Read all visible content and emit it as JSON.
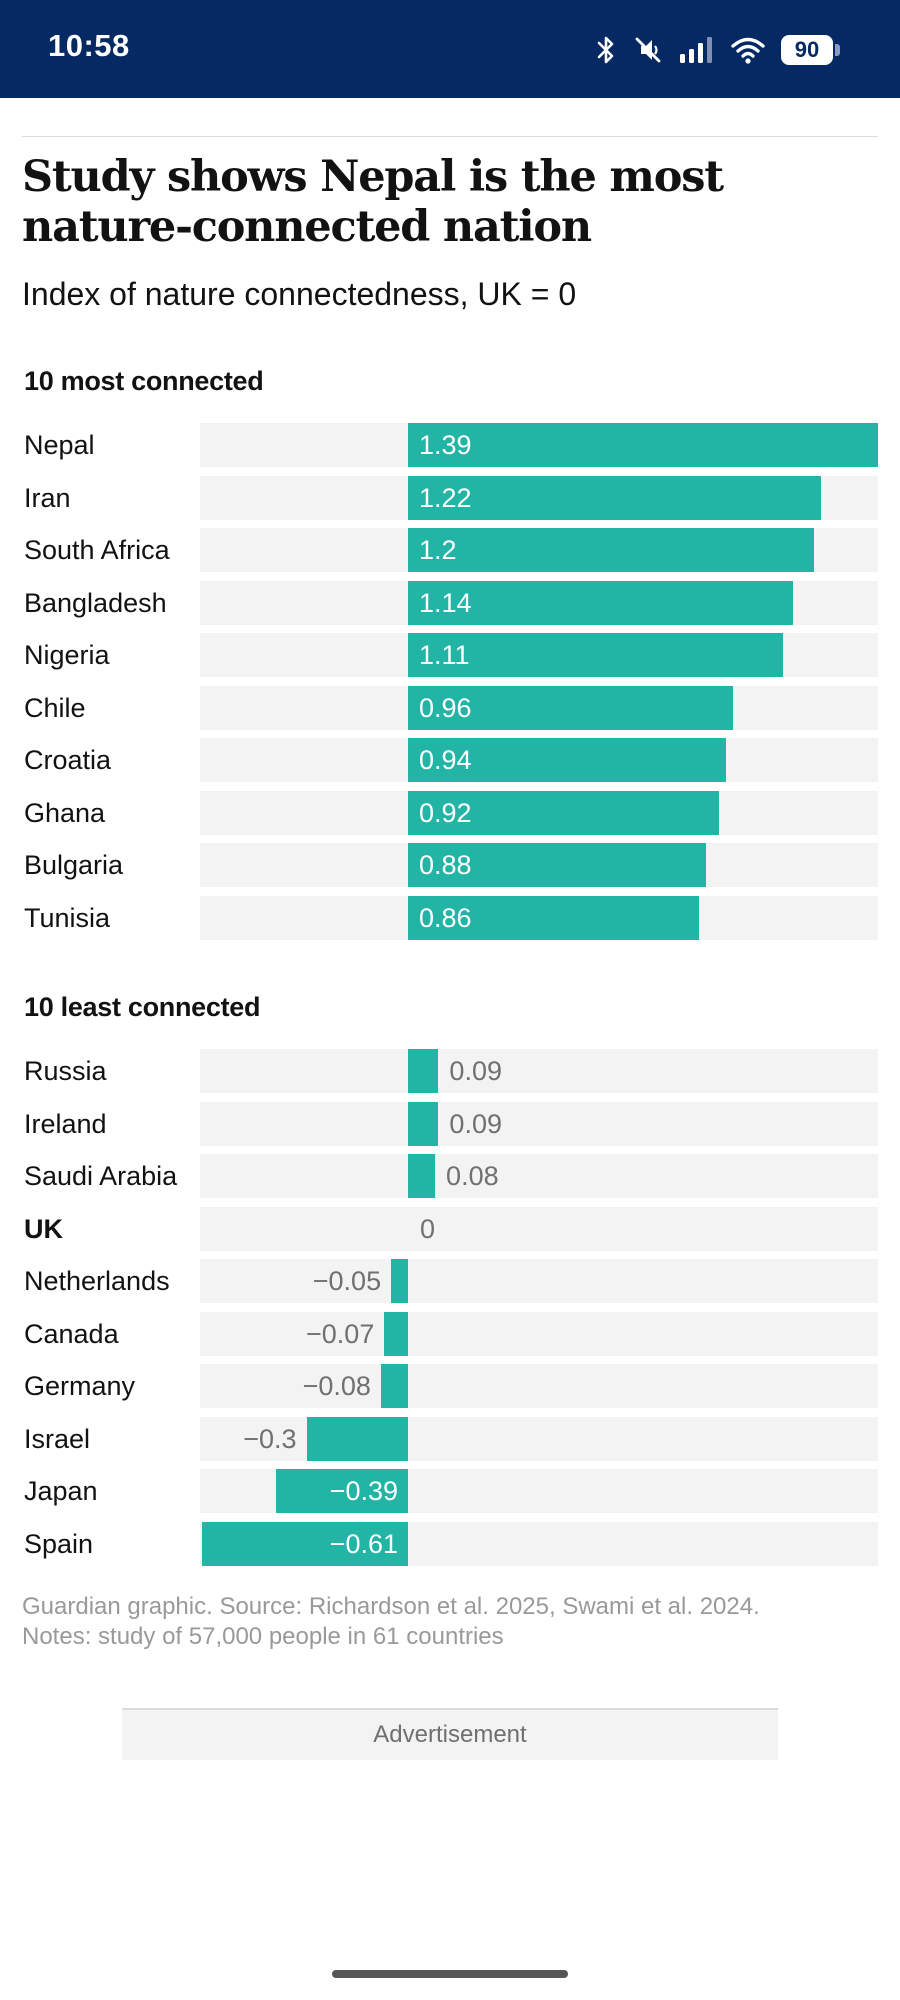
{
  "status_bar": {
    "time": "10:58",
    "battery": "90"
  },
  "article": {
    "headline": "Study shows Nepal is the most nature-connected nation",
    "subtitle": "Index of nature connectedness, UK = 0",
    "source_line1": "Guardian graphic. Source: Richardson et al. 2025, Swami et al. 2024.",
    "source_line2": "Notes: study of 57,000 people in 61 countries"
  },
  "ad": {
    "label": "Advertisement"
  },
  "colors": {
    "bar": "#22b5a6",
    "track": "#f3f3f3",
    "header": "#052962"
  },
  "chart_data": {
    "type": "bar",
    "orientation": "horizontal",
    "title": "Study shows Nepal is the most nature-connected nation",
    "subtitle": "Index of nature connectedness, UK = 0",
    "xlim": [
      -0.61,
      1.39
    ],
    "groups": [
      {
        "title": "10 most connected",
        "rows": [
          {
            "country": "Nepal",
            "value": 1.39,
            "label": "1.39"
          },
          {
            "country": "Iran",
            "value": 1.22,
            "label": "1.22"
          },
          {
            "country": "South Africa",
            "value": 1.2,
            "label": "1.2"
          },
          {
            "country": "Bangladesh",
            "value": 1.14,
            "label": "1.14"
          },
          {
            "country": "Nigeria",
            "value": 1.11,
            "label": "1.11"
          },
          {
            "country": "Chile",
            "value": 0.96,
            "label": "0.96"
          },
          {
            "country": "Croatia",
            "value": 0.94,
            "label": "0.94"
          },
          {
            "country": "Ghana",
            "value": 0.92,
            "label": "0.92"
          },
          {
            "country": "Bulgaria",
            "value": 0.88,
            "label": "0.88"
          },
          {
            "country": "Tunisia",
            "value": 0.86,
            "label": "0.86"
          }
        ]
      },
      {
        "title": "10 least connected",
        "rows": [
          {
            "country": "Russia",
            "value": 0.09,
            "label": "0.09"
          },
          {
            "country": "Ireland",
            "value": 0.09,
            "label": "0.09"
          },
          {
            "country": "Saudi Arabia",
            "value": 0.08,
            "label": "0.08"
          },
          {
            "country": "UK",
            "value": 0,
            "label": "0",
            "bold": true
          },
          {
            "country": "Netherlands",
            "value": -0.05,
            "label": "−0.05"
          },
          {
            "country": "Canada",
            "value": -0.07,
            "label": "−0.07"
          },
          {
            "country": "Germany",
            "value": -0.08,
            "label": "−0.08"
          },
          {
            "country": "Israel",
            "value": -0.3,
            "label": "−0.3"
          },
          {
            "country": "Japan",
            "value": -0.39,
            "label": "−0.39"
          },
          {
            "country": "Spain",
            "value": -0.61,
            "label": "−0.61"
          }
        ]
      }
    ]
  }
}
